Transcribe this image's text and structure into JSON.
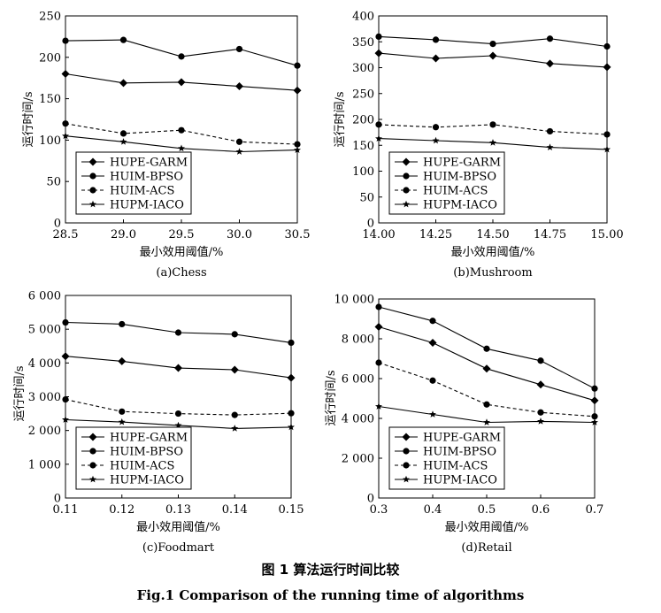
{
  "figure": {
    "caption_cn": "图 1 算法运行时间比较",
    "caption_en": "Fig.1 Comparison of the running time of algorithms"
  },
  "chart_data": [
    {
      "type": "line",
      "subtitle": "(a)Chess",
      "xlabel": "最小效用阈值/%",
      "ylabel": "运行时间/s",
      "x": [
        28.5,
        29.0,
        29.5,
        30.0,
        30.5
      ],
      "xticks": [
        "28.5",
        "29.0",
        "29.5",
        "30.0",
        "30.5"
      ],
      "xlim": [
        28.5,
        30.5
      ],
      "ylim": [
        0,
        250
      ],
      "yticks": [
        "0",
        "50",
        "100",
        "150",
        "200",
        "250"
      ],
      "legend": "bottom-left",
      "series": [
        {
          "name": "HUPE-GARM",
          "marker": "diamond",
          "dash": "solid",
          "values": [
            180,
            169,
            170,
            165,
            160
          ]
        },
        {
          "name": "HUIM-BPSO",
          "marker": "circle",
          "dash": "solid",
          "values": [
            220,
            221,
            201,
            210,
            190
          ]
        },
        {
          "name": "HUIM-ACS",
          "marker": "circle",
          "dash": "dashed",
          "values": [
            120,
            108,
            112,
            98,
            95
          ]
        },
        {
          "name": "HUPM-IACO",
          "marker": "star",
          "dash": "solid",
          "values": [
            105,
            98,
            90,
            86,
            88
          ]
        }
      ]
    },
    {
      "type": "line",
      "subtitle": "(b)Mushroom",
      "xlabel": "最小效用阈值/%",
      "ylabel": "运行时间/s",
      "x": [
        14.0,
        14.25,
        14.5,
        14.75,
        15.0
      ],
      "xticks": [
        "14.00",
        "14.25",
        "14.50",
        "14.75",
        "15.00"
      ],
      "xlim": [
        14.0,
        15.0
      ],
      "ylim": [
        0,
        400
      ],
      "yticks": [
        "0",
        "50",
        "100",
        "150",
        "200",
        "250",
        "300",
        "350",
        "400"
      ],
      "legend": "bottom-left",
      "series": [
        {
          "name": "HUPE-GARM",
          "marker": "diamond",
          "dash": "solid",
          "values": [
            328,
            318,
            323,
            308,
            301
          ]
        },
        {
          "name": "HUIM-BPSO",
          "marker": "circle",
          "dash": "solid",
          "values": [
            360,
            354,
            346,
            356,
            341
          ]
        },
        {
          "name": "HUIM-ACS",
          "marker": "circle",
          "dash": "dashed",
          "values": [
            190,
            185,
            190,
            177,
            171
          ]
        },
        {
          "name": "HUPM-IACO",
          "marker": "star",
          "dash": "solid",
          "values": [
            163,
            159,
            155,
            146,
            142
          ]
        }
      ]
    },
    {
      "type": "line",
      "subtitle": "(c)Foodmart",
      "xlabel": "最小效用阈值/%",
      "ylabel": "运行时间/s",
      "x": [
        0.11,
        0.12,
        0.13,
        0.14,
        0.15
      ],
      "xticks": [
        "0.11",
        "0.12",
        "0.13",
        "0.14",
        "0.15"
      ],
      "xlim": [
        0.11,
        0.15
      ],
      "ylim": [
        0,
        6000
      ],
      "yticks": [
        "0",
        "1 000",
        "2 000",
        "3 000",
        "4 000",
        "5 000",
        "6 000"
      ],
      "legend": "bottom-left",
      "series": [
        {
          "name": "HUPE-GARM",
          "marker": "diamond",
          "dash": "solid",
          "values": [
            4200,
            4050,
            3850,
            3800,
            3560
          ]
        },
        {
          "name": "HUIM-BPSO",
          "marker": "circle",
          "dash": "solid",
          "values": [
            5200,
            5150,
            4900,
            4850,
            4600
          ]
        },
        {
          "name": "HUIM-ACS",
          "marker": "circle",
          "dash": "dashed",
          "values": [
            2920,
            2560,
            2500,
            2460,
            2510
          ]
        },
        {
          "name": "HUPM-IACO",
          "marker": "star",
          "dash": "solid",
          "values": [
            2320,
            2250,
            2150,
            2060,
            2100
          ]
        }
      ]
    },
    {
      "type": "line",
      "subtitle": "(d)Retail",
      "xlabel": "最小效用阈值/%",
      "ylabel": "运行时间/s",
      "x": [
        0.3,
        0.4,
        0.5,
        0.6,
        0.7
      ],
      "xticks": [
        "0.3",
        "0.4",
        "0.5",
        "0.6",
        "0.7"
      ],
      "xlim": [
        0.3,
        0.7
      ],
      "ylim": [
        0,
        10000
      ],
      "yticks": [
        "0",
        "2 000",
        "4 000",
        "6 000",
        "8 000",
        "10 000"
      ],
      "legend": "bottom-left",
      "series": [
        {
          "name": "HUPE-GARM",
          "marker": "diamond",
          "dash": "solid",
          "values": [
            8600,
            7800,
            6500,
            5700,
            4900
          ]
        },
        {
          "name": "HUIM-BPSO",
          "marker": "circle",
          "dash": "solid",
          "values": [
            9600,
            8900,
            7500,
            6900,
            5500
          ]
        },
        {
          "name": "HUIM-ACS",
          "marker": "circle",
          "dash": "dashed",
          "values": [
            6800,
            5900,
            4700,
            4300,
            4100
          ]
        },
        {
          "name": "HUPM-IACO",
          "marker": "star",
          "dash": "solid",
          "values": [
            4600,
            4200,
            3800,
            3850,
            3800
          ]
        }
      ]
    }
  ]
}
